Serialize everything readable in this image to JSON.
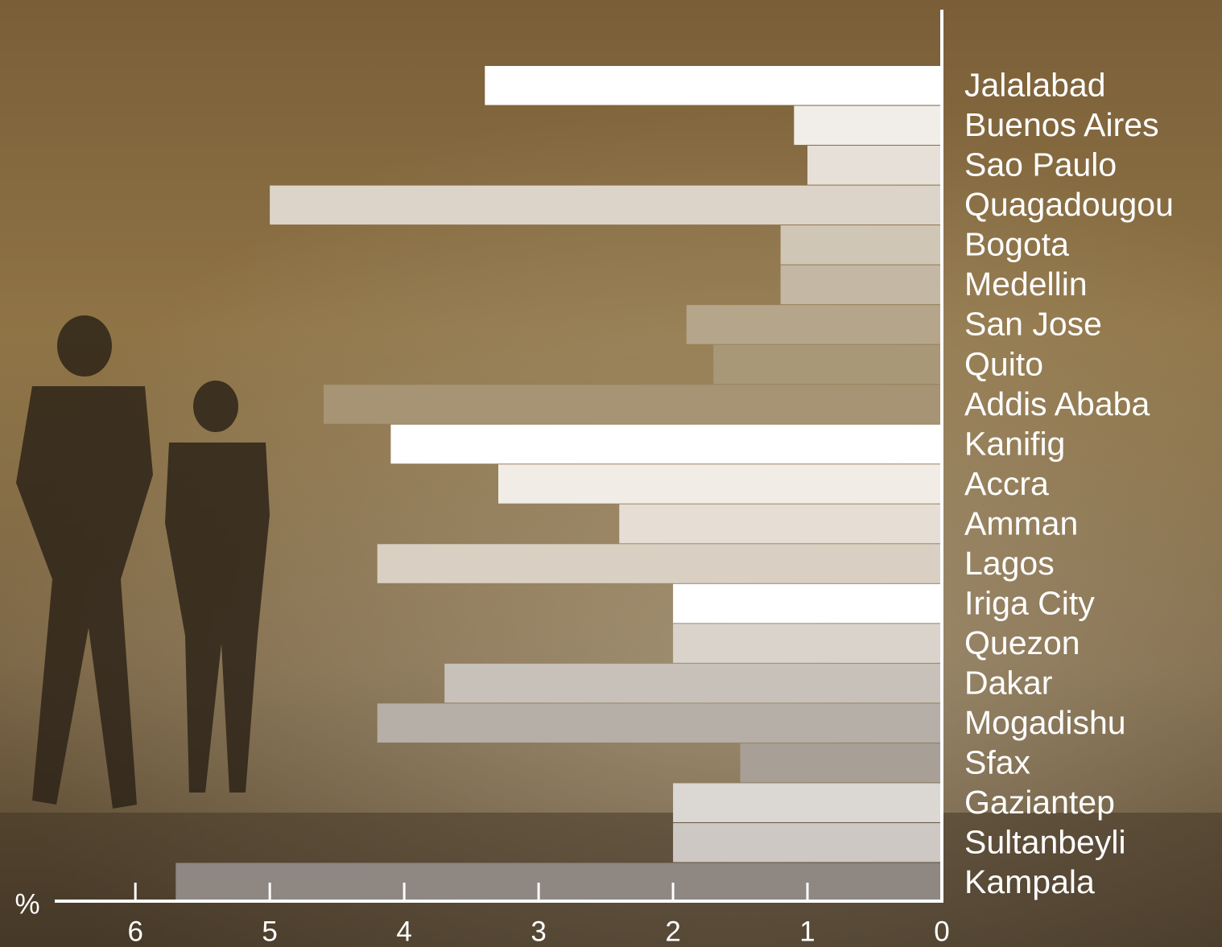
{
  "chart_data": {
    "type": "barh",
    "categories": [
      "Jalalabad",
      "Buenos Aires",
      "Sao Paulo",
      "Quagadougou",
      "Bogota",
      "Medellin",
      "San Jose",
      "Quito",
      "Addis Ababa",
      "Kanifig",
      "Accra",
      "Amman",
      "Lagos",
      "Iriga City",
      "Quezon",
      "Dakar",
      "Mogadishu",
      "Sfax",
      "Gaziantep",
      "Sultanbeyli",
      "Kampala"
    ],
    "values": [
      3.4,
      1.1,
      1.0,
      5.0,
      1.2,
      1.2,
      1.9,
      1.7,
      4.6,
      4.1,
      3.3,
      2.4,
      4.2,
      2.0,
      2.0,
      3.7,
      4.2,
      1.5,
      2.0,
      2.0,
      5.7
    ],
    "colors": [
      "#ffffff",
      "#f1ede8",
      "#e6e0d8",
      "#dcd4c8",
      "#d0c6b6",
      "#c4b8a4",
      "#b4a58b",
      "#a99878",
      "#a79475",
      "#ffffff",
      "#f1ece6",
      "#e6ded4",
      "#d9d0c3",
      "#ffffff",
      "#d9d3cb",
      "#c8c1ba",
      "#b6afa8",
      "#a89f96",
      "#dbd7d3",
      "#cdc8c4",
      "#8e8782"
    ],
    "xlabel": "%",
    "xlim": [
      0,
      6.6
    ],
    "xticks": [
      0,
      1,
      2,
      3,
      4,
      5,
      6
    ],
    "reversed": true
  }
}
